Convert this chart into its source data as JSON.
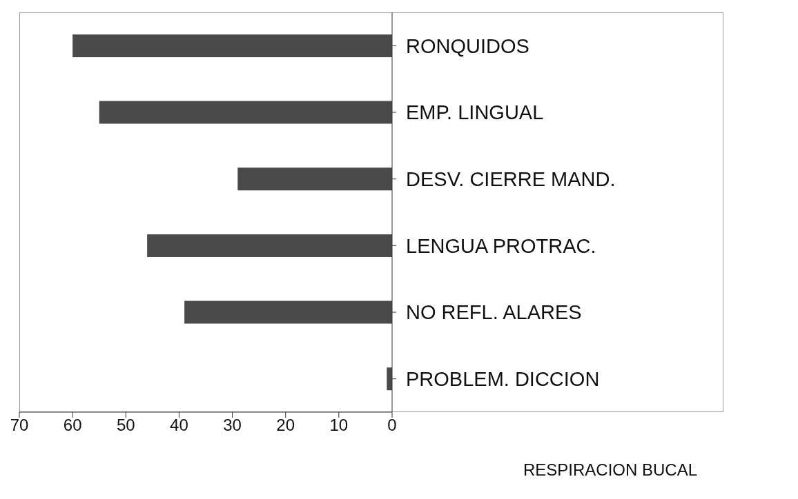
{
  "chart_data": {
    "type": "bar",
    "orientation": "horizontal",
    "xlabel": "RESPIRACION BUCAL",
    "categories": [
      "RONQUIDOS",
      "EMP. LINGUAL",
      "DESV. CIERRE MAND.",
      "LENGUA PROTRAC.",
      "NO REFL. ALARES",
      "PROBLEM. DICCION"
    ],
    "values": [
      60,
      55,
      29,
      46,
      39,
      1
    ],
    "color": "#4a4a4a",
    "xlim": [
      70,
      0
    ],
    "xticks": [
      70,
      60,
      50,
      40,
      30,
      20,
      10,
      0
    ],
    "grid": false,
    "legend": false
  }
}
